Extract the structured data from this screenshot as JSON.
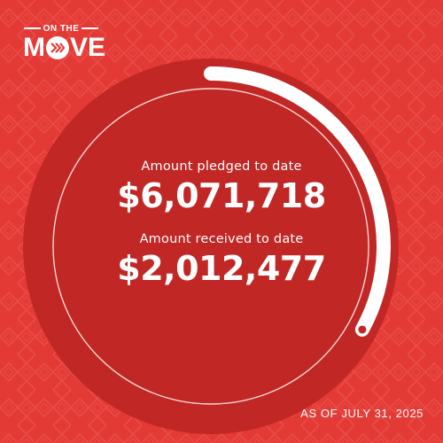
{
  "brand": {
    "logo_top_text": "ON THE",
    "logo_word_m": "M",
    "logo_word_rest": "VE"
  },
  "colors": {
    "background": "#e43a35",
    "circle_fill": "#c02725",
    "ring": "#f7d8d4",
    "progress_track": "#ffffff"
  },
  "pledged": {
    "label": "Amount pledged to date",
    "value": "$6,071,718"
  },
  "received": {
    "label": "Amount received to date",
    "value": "$2,012,477"
  },
  "progress": {
    "received_fraction": 0.33
  },
  "footer": {
    "as_of": "AS OF JULY 31, 2025"
  }
}
